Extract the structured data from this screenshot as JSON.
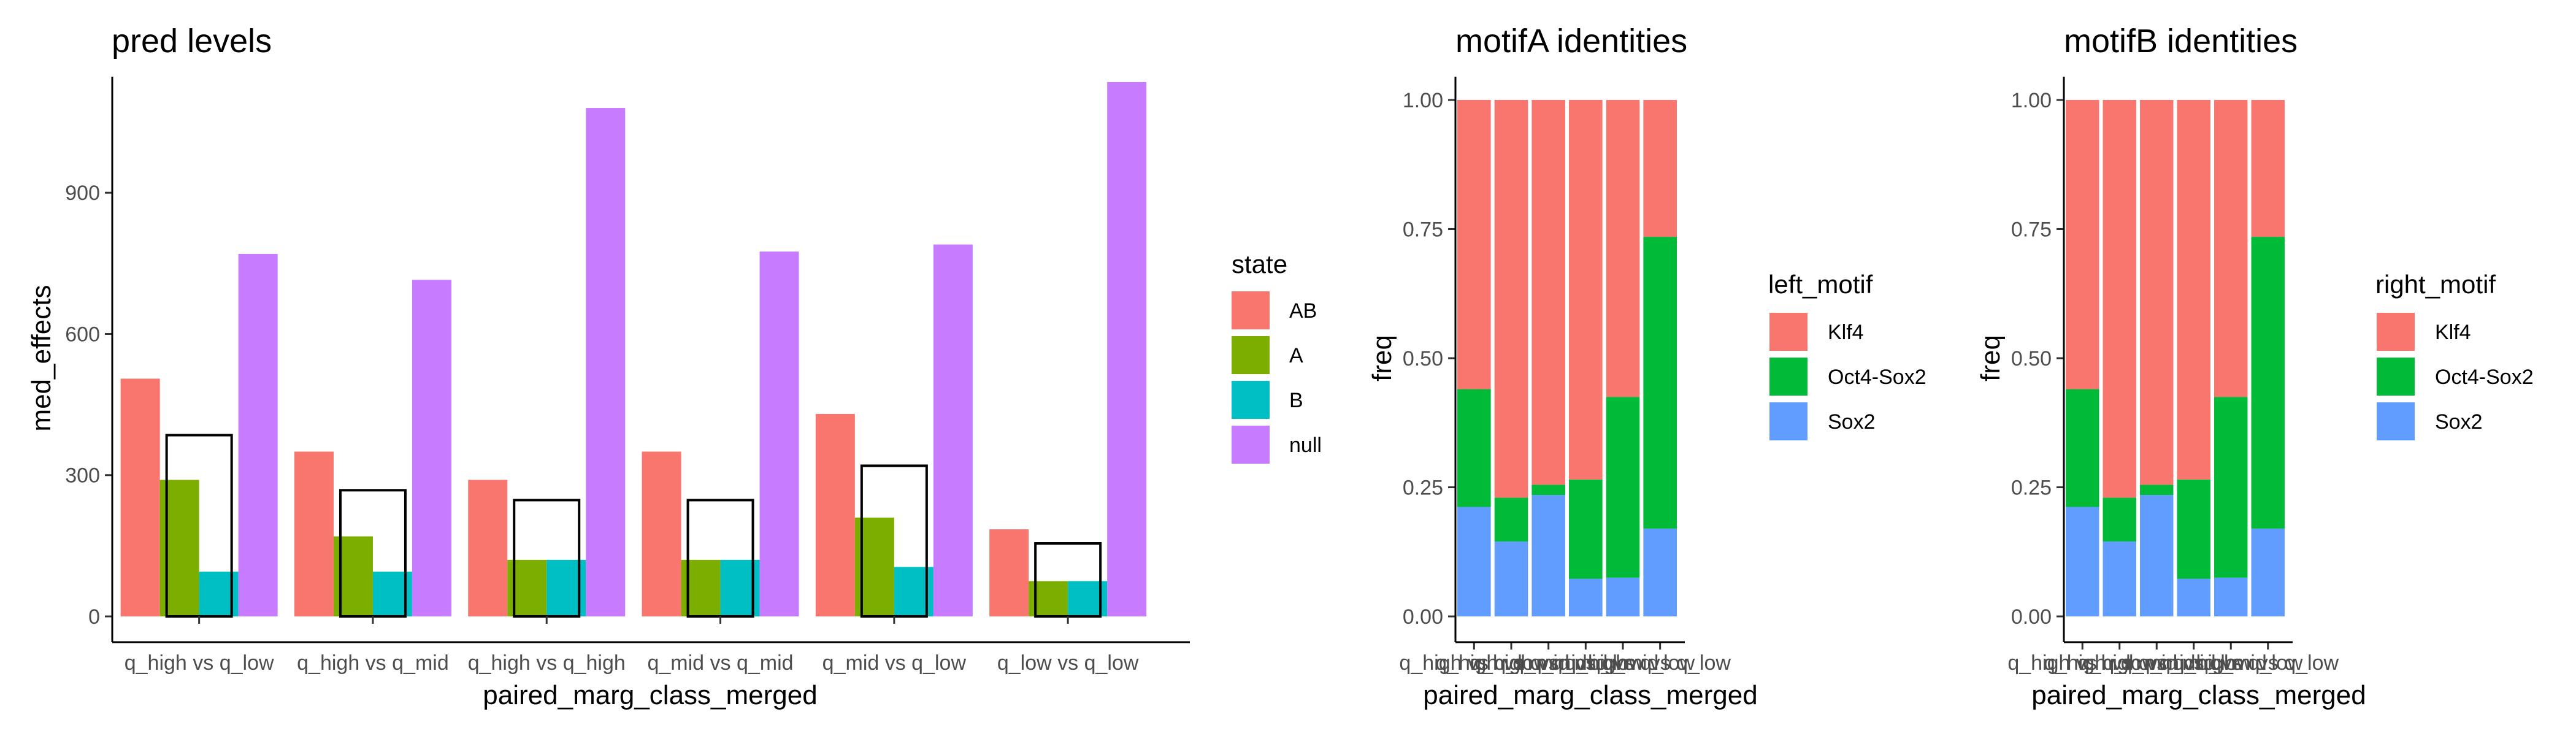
{
  "chart_data": [
    {
      "type": "bar",
      "title": "pred levels",
      "xlabel": "paired_marg_class_merged",
      "ylabel": "med_effects",
      "categories": [
        "q_high vs q_low",
        "q_high vs q_mid",
        "q_high vs q_high",
        "q_mid vs q_mid",
        "q_mid vs q_low",
        "q_low vs q_low"
      ],
      "ylim": [
        0,
        1140
      ],
      "yticks": [
        0,
        300,
        600,
        900
      ],
      "legend": {
        "title": "state",
        "position": "right"
      },
      "series": [
        {
          "name": "AB",
          "color": "#F8766D",
          "values": [
            505,
            350,
            290,
            350,
            430,
            185
          ]
        },
        {
          "name": "A",
          "color": "#7CAE00",
          "values": [
            290,
            170,
            120,
            120,
            210,
            75
          ]
        },
        {
          "name": "B",
          "color": "#00BFC4",
          "values": [
            95,
            95,
            120,
            120,
            105,
            75
          ]
        },
        {
          "name": "null",
          "color": "#C77CFF",
          "values": [
            770,
            715,
            1080,
            775,
            790,
            1135
          ]
        }
      ],
      "outline_boxes": [
        385,
        268,
        247,
        247,
        320,
        155
      ],
      "grid": false
    },
    {
      "type": "bar",
      "stacked": true,
      "title": "motifA identities",
      "xlabel": "paired_marg_class_merged",
      "ylabel": "freq",
      "categories": [
        "q_high vs q_low",
        "q_high vs q_mid",
        "q_high vs q_high",
        "q_mid vs q_mid",
        "q_mid vs q_low",
        "q_low vs q_low"
      ],
      "ylim": [
        0,
        1
      ],
      "yticks": [
        "0.00",
        "0.25",
        "0.50",
        "0.75",
        "1.00"
      ],
      "legend": {
        "title": "left_motif",
        "position": "right"
      },
      "series": [
        {
          "name": "Klf4",
          "color": "#F8766D",
          "values": [
            0.56,
            0.77,
            0.745,
            0.735,
            0.575,
            0.265
          ]
        },
        {
          "name": "Oct4-Sox2",
          "color": "#00BA38",
          "values": [
            0.228,
            0.085,
            0.02,
            0.192,
            0.35,
            0.565
          ]
        },
        {
          "name": "Sox2",
          "color": "#619CFF",
          "values": [
            0.212,
            0.145,
            0.235,
            0.073,
            0.075,
            0.17
          ]
        }
      ],
      "grid": false
    },
    {
      "type": "bar",
      "stacked": true,
      "title": "motifB identities",
      "xlabel": "paired_marg_class_merged",
      "ylabel": "freq",
      "categories": [
        "q_high vs q_low",
        "q_high vs q_mid",
        "q_high vs q_high",
        "q_mid vs q_mid",
        "q_mid vs q_low",
        "q_low vs q_low"
      ],
      "ylim": [
        0,
        1
      ],
      "yticks": [
        "0.00",
        "0.25",
        "0.50",
        "0.75",
        "1.00"
      ],
      "legend": {
        "title": "right_motif",
        "position": "right"
      },
      "series": [
        {
          "name": "Klf4",
          "color": "#F8766D",
          "values": [
            0.56,
            0.77,
            0.745,
            0.735,
            0.575,
            0.265
          ]
        },
        {
          "name": "Oct4-Sox2",
          "color": "#00BA38",
          "values": [
            0.228,
            0.085,
            0.02,
            0.192,
            0.35,
            0.565
          ]
        },
        {
          "name": "Sox2",
          "color": "#619CFF",
          "values": [
            0.212,
            0.145,
            0.235,
            0.073,
            0.075,
            0.17
          ]
        }
      ],
      "grid": false
    }
  ]
}
